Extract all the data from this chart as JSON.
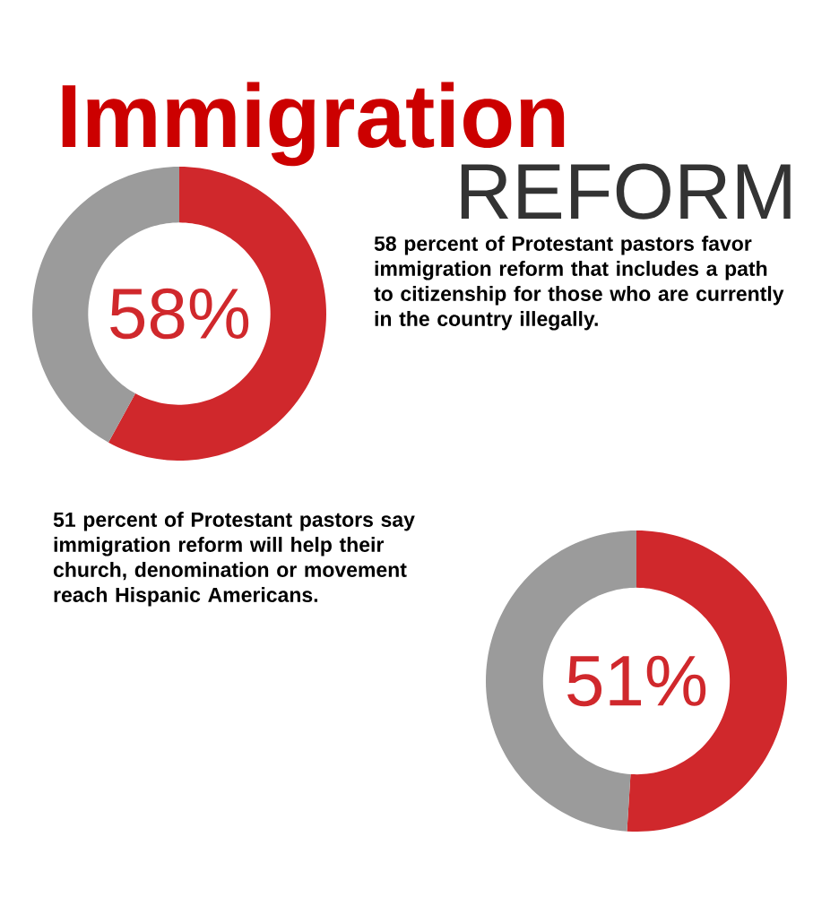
{
  "chart_data": [
    {
      "type": "donut",
      "title": "Immigration",
      "subtitle": "REFORM",
      "categories": [
        null,
        null
      ],
      "values": [
        58,
        42
      ],
      "colors": [
        "#d0282c",
        "#9b9b9b"
      ],
      "value_labels": [
        "58%",
        null
      ],
      "annotations": [
        "58 percent of Protestant pastors favor immigration reform that includes a path to citizenship for those who are currently in the country illegally."
      ]
    },
    {
      "type": "donut",
      "categories": [
        null,
        null
      ],
      "values": [
        51,
        49
      ],
      "colors": [
        "#d0282c",
        "#9b9b9b"
      ],
      "value_labels": [
        "51%",
        null
      ],
      "annotations": [
        "51 percent of Protestant pastors say immigration reform will help their church, denomination or movement reach Hispanic Americans."
      ]
    }
  ]
}
